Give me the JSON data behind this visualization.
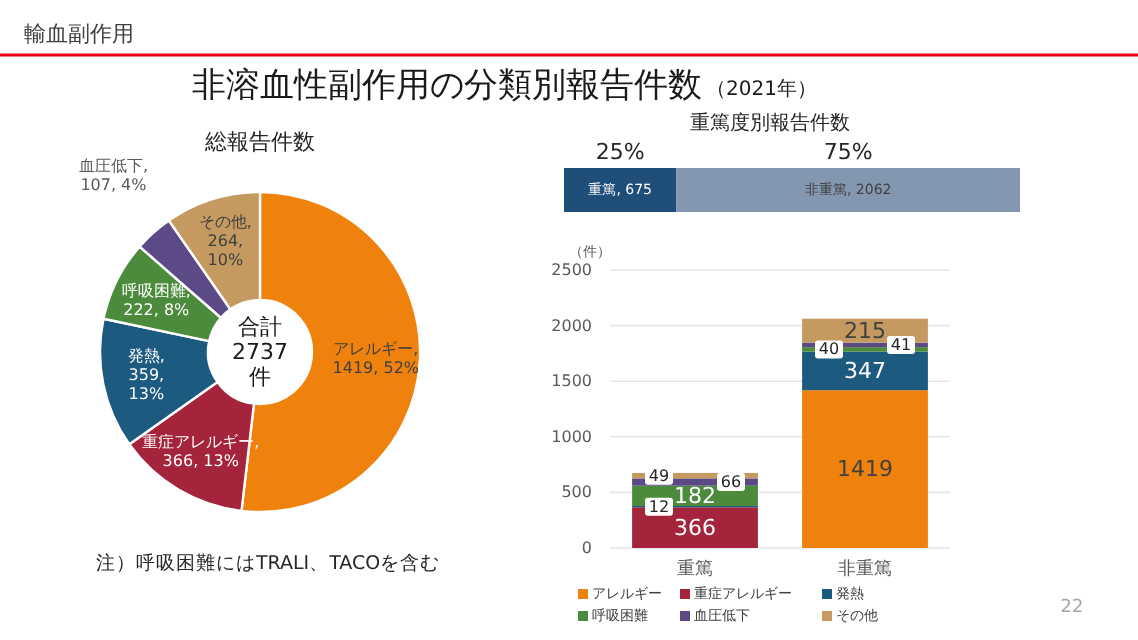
{
  "chart_data": [
    {
      "type": "other",
      "title": "非溶血性副作用の分類別報告件数",
      "subtitle": "（2021年）",
      "annotations": [
        "輸血副作用",
        "22"
      ]
    },
    {
      "type": "donut",
      "title": "総報告件数",
      "categories": [
        "アレルギー",
        "重症アレルギー",
        "発熱",
        "呼吸困難",
        "血圧低下",
        "その他"
      ],
      "values": [
        1419,
        366,
        359,
        222,
        107,
        264
      ],
      "colors": [
        "#ef820d",
        "#a3243b",
        "#1d5a80",
        "#4b8b3b",
        "#5b4a85",
        "#c49a60"
      ],
      "value_labels": [
        ",\n1419, 52%",
        ",\n366, 13%",
        ",\n359,\n13%",
        ",\n222, 8%",
        ",\n107, 4%",
        ",\n264,\n10%"
      ],
      "annotations": [
        "合計\n2737\n件",
        "注）呼吸困難にはTRALI、TACOを含む"
      ]
    },
    {
      "type": "bar",
      "title": "重篤度別報告件数",
      "orientation": "horizontal",
      "stacked": true,
      "categories": [
        null
      ],
      "series": [
        {
          "name": "重篤",
          "color": "#1f4e79",
          "values": [
            675
          ],
          "value_labels": [
            ", 675"
          ]
        },
        {
          "name": "非重篤",
          "color": "#8497b0",
          "values": [
            2062
          ],
          "value_labels": [
            ", 2062"
          ]
        }
      ],
      "annotations": [
        "25%",
        "75%"
      ]
    },
    {
      "type": "bar",
      "stacked": true,
      "categories": [
        "重篤",
        "非重篤"
      ],
      "ylabel": "（件）",
      "series": [
        {
          "name": "アレルギー",
          "color": "#ef820d",
          "values": [
            0,
            1419
          ],
          "value_labels": [
            null,
            "1419"
          ]
        },
        {
          "name": "重症アレルギー",
          "color": "#a3243b",
          "values": [
            366,
            0
          ],
          "value_labels": [
            "366",
            null
          ]
        },
        {
          "name": "発熱",
          "color": "#1d5a80",
          "values": [
            12,
            347
          ],
          "value_labels": [
            "12",
            "347"
          ]
        },
        {
          "name": "呼吸困難",
          "color": "#4b8b3b",
          "values": [
            182,
            40
          ],
          "value_labels": [
            "182",
            "40"
          ]
        },
        {
          "name": "血圧低下",
          "color": "#5b4a85",
          "values": [
            66,
            41
          ],
          "value_labels": [
            "66",
            "41"
          ]
        },
        {
          "name": "その他",
          "color": "#c49a60",
          "values": [
            49,
            215
          ],
          "value_labels": [
            "49",
            "215"
          ]
        }
      ],
      "ylim": [
        0,
        2500
      ],
      "yticks": [
        0,
        500,
        1000,
        1500,
        2000,
        2500
      ],
      "grid": "y",
      "legend": "bottom"
    }
  ]
}
